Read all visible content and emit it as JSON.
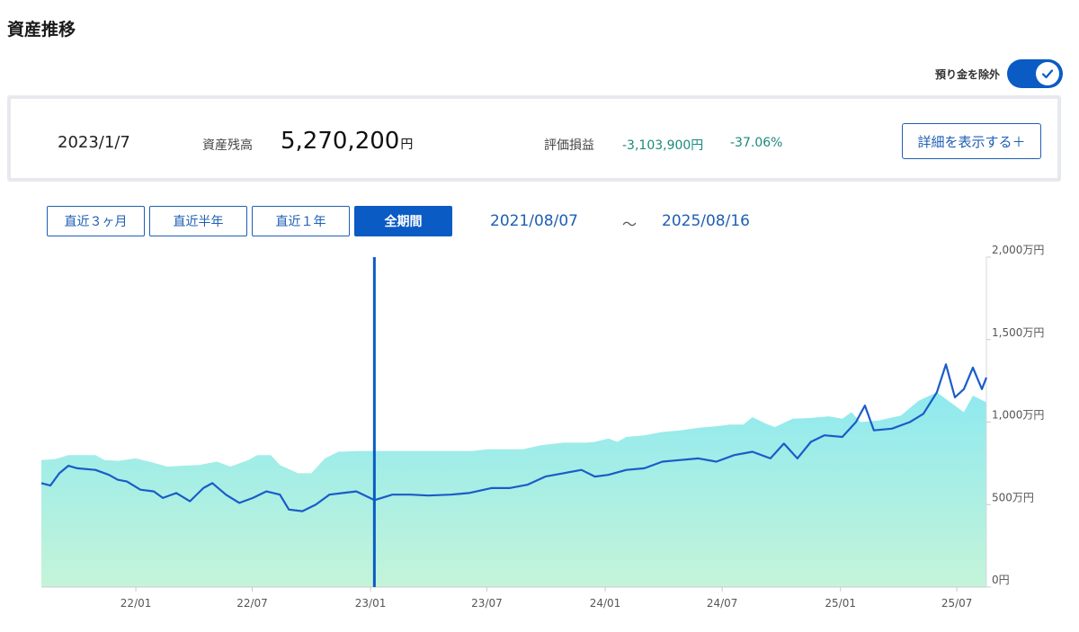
{
  "page": {
    "title": "資産推移"
  },
  "toggle": {
    "label": "預り金を除外",
    "on": true
  },
  "summary": {
    "date": "2023/1/7",
    "balance_label": "資産残高",
    "balance_value": "5,270,200",
    "balance_unit": "円",
    "pl_label": "評価損益",
    "pl_amount": "-3,103,900円",
    "pl_percent": "-37.06%",
    "detail_button": "詳細を表示する＋"
  },
  "periods": [
    {
      "label": "直近３ヶ月",
      "active": false
    },
    {
      "label": "直近半年",
      "active": false
    },
    {
      "label": "直近１年",
      "active": false
    },
    {
      "label": "全期間",
      "active": true
    }
  ],
  "range": {
    "start": "2021/08/07",
    "separator": "〜",
    "end": "2025/08/16"
  },
  "colors": {
    "accent": "#0a5bc4",
    "line": "#1a5cc8",
    "area_top": "#8fe9ef",
    "area_bottom": "#c4f4d9",
    "positive_teal": "#1a8a7a"
  },
  "chart_data": {
    "type": "area",
    "x_start": "2021/08/07",
    "x_end": "2025/08/16",
    "x_ticks": [
      "22/01",
      "22/07",
      "23/01",
      "23/07",
      "24/01",
      "24/07",
      "25/01",
      "25/07"
    ],
    "y_ticks": [
      "0円",
      "500万円",
      "1,000万円",
      "1,500万円",
      "2,000万円"
    ],
    "ylim": [
      0,
      2000
    ],
    "y_unit": "万円",
    "cursor_date": "2023/1/7",
    "series": [
      {
        "role": "area",
        "points": [
          [
            "2021/08/07",
            770
          ],
          [
            "2021/08/28",
            775
          ],
          [
            "2021/09/18",
            800
          ],
          [
            "2021/10/30",
            800
          ],
          [
            "2021/11/13",
            770
          ],
          [
            "2021/12/04",
            765
          ],
          [
            "2022/01/01",
            780
          ],
          [
            "2022/01/22",
            760
          ],
          [
            "2022/02/19",
            730
          ],
          [
            "2022/03/12",
            735
          ],
          [
            "2022/04/09",
            740
          ],
          [
            "2022/05/07",
            760
          ],
          [
            "2022/05/28",
            730
          ],
          [
            "2022/06/25",
            770
          ],
          [
            "2022/07/09",
            800
          ],
          [
            "2022/07/30",
            800
          ],
          [
            "2022/08/13",
            740
          ],
          [
            "2022/09/10",
            690
          ],
          [
            "2022/10/01",
            690
          ],
          [
            "2022/10/22",
            780
          ],
          [
            "2022/11/12",
            820
          ],
          [
            "2022/12/17",
            825
          ],
          [
            "2023/01/07",
            825
          ],
          [
            "2023/04/08",
            825
          ],
          [
            "2023/06/10",
            825
          ],
          [
            "2023/07/01",
            835
          ],
          [
            "2023/08/26",
            835
          ],
          [
            "2023/09/23",
            860
          ],
          [
            "2023/10/28",
            875
          ],
          [
            "2023/12/02",
            875
          ],
          [
            "2023/12/16",
            880
          ],
          [
            "2024/01/06",
            900
          ],
          [
            "2024/01/20",
            880
          ],
          [
            "2024/02/03",
            910
          ],
          [
            "2024/03/02",
            920
          ],
          [
            "2024/03/30",
            940
          ],
          [
            "2024/04/27",
            950
          ],
          [
            "2024/05/25",
            965
          ],
          [
            "2024/06/22",
            975
          ],
          [
            "2024/07/13",
            985
          ],
          [
            "2024/08/03",
            985
          ],
          [
            "2024/08/17",
            1030
          ],
          [
            "2024/09/07",
            990
          ],
          [
            "2024/09/21",
            970
          ],
          [
            "2024/10/19",
            1020
          ],
          [
            "2024/11/16",
            1025
          ],
          [
            "2024/12/14",
            1035
          ],
          [
            "2025/01/04",
            1020
          ],
          [
            "2025/01/18",
            1060
          ],
          [
            "2025/02/01",
            1000
          ],
          [
            "2025/03/01",
            1010
          ],
          [
            "2025/04/05",
            1040
          ],
          [
            "2025/05/03",
            1130
          ],
          [
            "2025/05/31",
            1180
          ],
          [
            "2025/06/21",
            1120
          ],
          [
            "2025/07/12",
            1060
          ],
          [
            "2025/07/26",
            1160
          ],
          [
            "2025/08/16",
            1120
          ]
        ]
      },
      {
        "role": "line",
        "points": [
          [
            "2021/08/07",
            630
          ],
          [
            "2021/08/21",
            615
          ],
          [
            "2021/09/04",
            690
          ],
          [
            "2021/09/18",
            735
          ],
          [
            "2021/10/02",
            720
          ],
          [
            "2021/10/30",
            710
          ],
          [
            "2021/11/20",
            680
          ],
          [
            "2021/12/04",
            650
          ],
          [
            "2021/12/18",
            640
          ],
          [
            "2022/01/08",
            590
          ],
          [
            "2022/01/29",
            580
          ],
          [
            "2022/02/12",
            540
          ],
          [
            "2022/03/05",
            570
          ],
          [
            "2022/03/26",
            520
          ],
          [
            "2022/04/16",
            600
          ],
          [
            "2022/04/30",
            630
          ],
          [
            "2022/05/21",
            560
          ],
          [
            "2022/06/11",
            510
          ],
          [
            "2022/07/02",
            540
          ],
          [
            "2022/07/23",
            580
          ],
          [
            "2022/08/13",
            560
          ],
          [
            "2022/08/27",
            470
          ],
          [
            "2022/09/17",
            460
          ],
          [
            "2022/10/08",
            500
          ],
          [
            "2022/10/29",
            560
          ],
          [
            "2022/11/19",
            570
          ],
          [
            "2022/12/10",
            580
          ],
          [
            "2023/01/07",
            527
          ],
          [
            "2023/02/04",
            560
          ],
          [
            "2023/03/04",
            560
          ],
          [
            "2023/04/01",
            555
          ],
          [
            "2023/05/06",
            560
          ],
          [
            "2023/06/03",
            570
          ],
          [
            "2023/07/08",
            600
          ],
          [
            "2023/08/05",
            600
          ],
          [
            "2023/09/02",
            620
          ],
          [
            "2023/09/30",
            670
          ],
          [
            "2023/10/28",
            690
          ],
          [
            "2023/11/25",
            710
          ],
          [
            "2023/12/16",
            670
          ],
          [
            "2024/01/06",
            680
          ],
          [
            "2024/02/03",
            710
          ],
          [
            "2024/03/02",
            720
          ],
          [
            "2024/03/30",
            760
          ],
          [
            "2024/04/27",
            770
          ],
          [
            "2024/05/25",
            780
          ],
          [
            "2024/06/22",
            760
          ],
          [
            "2024/07/20",
            800
          ],
          [
            "2024/08/17",
            820
          ],
          [
            "2024/09/14",
            780
          ],
          [
            "2024/10/05",
            870
          ],
          [
            "2024/10/26",
            780
          ],
          [
            "2024/11/16",
            880
          ],
          [
            "2024/12/07",
            920
          ],
          [
            "2025/01/04",
            910
          ],
          [
            "2025/01/25",
            1000
          ],
          [
            "2025/02/08",
            1100
          ],
          [
            "2025/02/22",
            950
          ],
          [
            "2025/03/22",
            960
          ],
          [
            "2025/04/19",
            1000
          ],
          [
            "2025/05/10",
            1050
          ],
          [
            "2025/05/31",
            1180
          ],
          [
            "2025/06/14",
            1350
          ],
          [
            "2025/06/28",
            1150
          ],
          [
            "2025/07/12",
            1200
          ],
          [
            "2025/07/26",
            1330
          ],
          [
            "2025/08/09",
            1200
          ],
          [
            "2025/08/16",
            1270
          ]
        ]
      }
    ]
  }
}
